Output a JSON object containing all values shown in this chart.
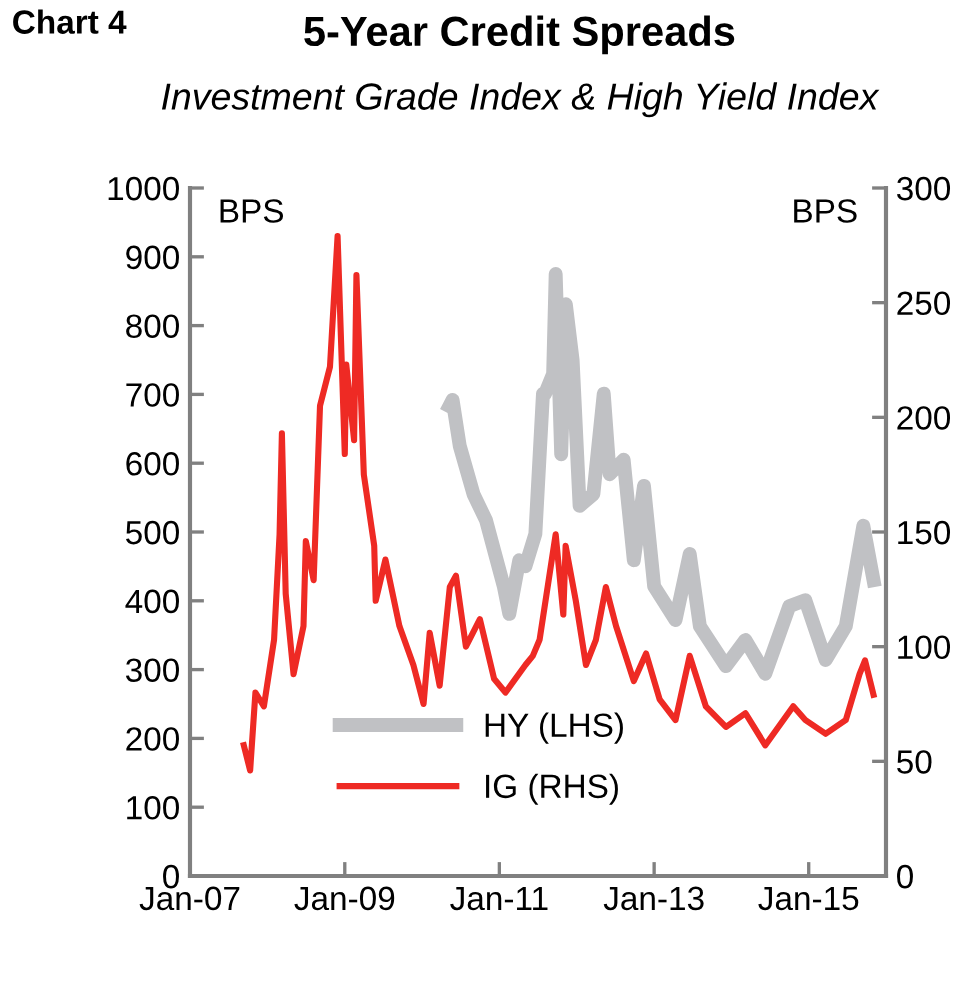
{
  "chart_data": {
    "type": "line",
    "title": "5-Year Credit Spreads",
    "subtitle": "Investment Grade Index & High Yield Index",
    "ylabel": "BPS",
    "y2label": "BPS",
    "annotations": [
      "Chart 4"
    ],
    "xlim": [
      "2007-01-01",
      "2016-01-01"
    ],
    "xticks": [
      {
        "value": "2007-01-01",
        "label": "Jan-07"
      },
      {
        "value": "2009-01-01",
        "label": "Jan-09"
      },
      {
        "value": "2011-01-01",
        "label": "Jan-11"
      },
      {
        "value": "2013-01-01",
        "label": "Jan-13"
      },
      {
        "value": "2015-01-01",
        "label": "Jan-15"
      }
    ],
    "ylim": [
      0,
      1000
    ],
    "yticks": [
      0,
      100,
      200,
      300,
      400,
      500,
      600,
      700,
      800,
      900,
      1000
    ],
    "y2lim": [
      0,
      300
    ],
    "y2ticks": [
      0,
      50,
      100,
      150,
      200,
      250,
      300
    ],
    "grid": false,
    "legend": "bottom",
    "marker": "none",
    "line_style": "solid",
    "series": [
      {
        "name": "HY (LHS)",
        "color": "#c0c1c4",
        "axis": "y",
        "x": [
          "2010-05-10",
          "2010-05-25",
          "2010-06-28",
          "2010-09-01",
          "2010-10-30",
          "2011-01-22",
          "2011-02-17",
          "2011-04-05",
          "2011-05-04",
          "2011-06-20",
          "2011-07-26",
          "2011-08-05",
          "2011-09-12",
          "2011-09-24",
          "2011-10-20",
          "2011-11-11",
          "2011-12-13",
          "2012-01-15",
          "2012-03-20",
          "2012-05-08",
          "2012-06-05",
          "2012-08-10",
          "2012-09-27",
          "2012-11-14",
          "2013-01-01",
          "2013-04-12",
          "2013-06-18",
          "2013-08-05",
          "2013-12-06",
          "2014-03-08",
          "2014-06-10",
          "2014-10-01",
          "2014-12-16",
          "2015-03-22",
          "2015-06-25",
          "2015-09-16",
          "2015-11-03"
        ],
        "values": [
          683,
          692,
          625,
          555,
          517,
          421,
          381,
          459,
          450,
          497,
          701,
          701,
          730,
          875,
          613,
          831,
          750,
          538,
          555,
          701,
          584,
          605,
          459,
          567,
          421,
          372,
          468,
          363,
          305,
          343,
          294,
          392,
          401,
          314,
          363,
          509,
          430
        ]
      },
      {
        "name": "IG (RHS)",
        "color": "#ee2a24",
        "axis": "y2",
        "x": [
          "2007-09-12",
          "2007-10-12",
          "2007-11-06",
          "2007-12-16",
          "2008-02-02",
          "2008-02-28",
          "2008-03-10",
          "2008-03-28",
          "2008-05-04",
          "2008-06-20",
          "2008-07-01",
          "2008-08-07",
          "2008-09-06",
          "2008-10-23",
          "2008-11-28",
          "2009-01-01",
          "2009-01-08",
          "2009-02-14",
          "2009-02-25",
          "2009-04-01",
          "2009-05-20",
          "2009-05-27",
          "2009-07-12",
          "2009-09-16",
          "2009-11-21",
          "2010-01-08",
          "2010-02-06",
          "2010-03-25",
          "2010-05-12",
          "2010-06-10",
          "2010-07-27",
          "2010-10-01",
          "2010-12-07",
          "2011-01-30",
          "2011-05-04",
          "2011-06-08",
          "2011-07-10",
          "2011-09-24",
          "2011-10-30",
          "2011-11-10",
          "2011-12-28",
          "2012-02-14",
          "2012-04-01",
          "2012-05-18",
          "2012-07-05",
          "2012-09-27",
          "2012-11-24",
          "2013-01-27",
          "2013-04-12",
          "2013-06-18",
          "2013-09-02",
          "2013-12-06",
          "2014-03-08",
          "2014-06-10",
          "2014-10-20",
          "2014-12-16",
          "2015-03-22",
          "2015-06-25",
          "2015-08-29",
          "2015-09-24",
          "2015-11-03"
        ],
        "values": [
          57,
          46,
          80,
          74,
          103,
          149,
          193,
          123,
          88,
          109,
          146,
          129,
          205,
          222,
          279,
          184,
          223,
          190,
          262,
          175,
          144,
          120,
          138,
          109,
          92,
          75,
          106,
          83,
          126,
          131,
          100,
          112,
          86,
          80,
          92,
          96,
          103,
          149,
          114,
          144,
          120,
          92,
          103,
          126,
          109,
          85,
          97,
          77,
          68,
          96,
          74,
          65,
          71,
          57,
          74,
          68,
          62,
          68,
          88,
          94,
          79
        ]
      }
    ]
  }
}
